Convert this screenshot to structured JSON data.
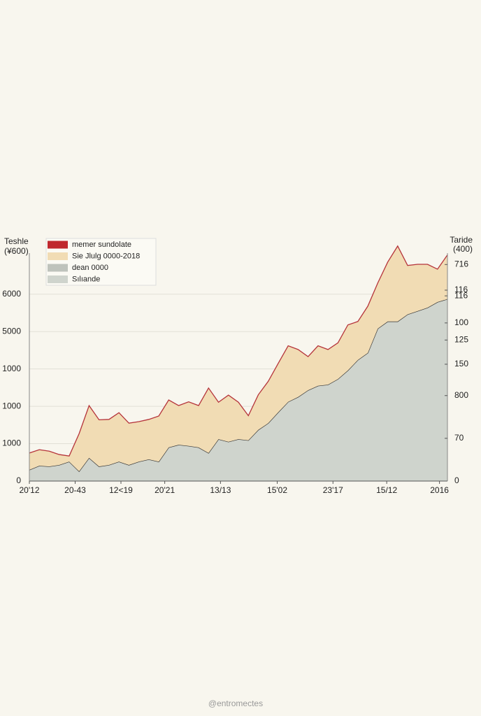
{
  "chart_data": {
    "type": "stacked_area",
    "y_axis_title": "Teshle",
    "y_axis_unit": "(¥600)",
    "y2_axis_title": "Taride",
    "y2_axis_unit": "(400)",
    "watermark": "@entromectes",
    "x": [
      0,
      1,
      2,
      3,
      4,
      5,
      6,
      7,
      8,
      9,
      10,
      11,
      12,
      13,
      14,
      15,
      16,
      17,
      18,
      19,
      20,
      21,
      22,
      23,
      24,
      25,
      26,
      27,
      28,
      29,
      30,
      31,
      32,
      33,
      34,
      35,
      36,
      37,
      38,
      39,
      40,
      41,
      42
    ],
    "xlim": [
      0,
      42
    ],
    "xticks": [
      {
        "value": 0,
        "label": "20'12"
      },
      {
        "value": 4.6,
        "label": "20-43"
      },
      {
        "value": 9.2,
        "label": "12<19"
      },
      {
        "value": 13.6,
        "label": "20'21"
      },
      {
        "value": 19.2,
        "label": "13/13"
      },
      {
        "value": 24.9,
        "label": "15'02"
      },
      {
        "value": 30.5,
        "label": "23'17"
      },
      {
        "value": 35.9,
        "label": "15/12"
      },
      {
        "value": 41.2,
        "label": "2016"
      }
    ],
    "ylim": [
      0,
      6100
    ],
    "yticks": [
      0,
      1000,
      {
        "value": 2000,
        "label": "1000"
      },
      {
        "value": 3000,
        "label": "1000"
      },
      {
        "value": 4000,
        "label": "5000"
      },
      {
        "value": 5000,
        "label": "6000"
      }
    ],
    "y2lim": [
      0,
      800
    ],
    "y2ticks": [
      0,
      {
        "value": 150,
        "label": "70"
      },
      {
        "value": 300,
        "label": "800"
      },
      {
        "value": 410,
        "label": "150"
      },
      {
        "value": 495,
        "label": "125"
      },
      {
        "value": 555,
        "label": "100"
      },
      {
        "value": 650,
        "label": "116"
      },
      {
        "value": 670,
        "label": "116"
      },
      {
        "value": 760,
        "label": "716"
      }
    ],
    "grid": true,
    "legend": "upper left",
    "series": [
      {
        "name": "Sılıande",
        "color": "#cfd4cd",
        "line_name": "dean 0000",
        "line_color": "#bfc3bc",
        "stroke": "#333333",
        "values": [
          300,
          410,
          390,
          430,
          520,
          260,
          620,
          390,
          430,
          520,
          430,
          520,
          580,
          520,
          900,
          970,
          940,
          900,
          750,
          1120,
          1050,
          1120,
          1090,
          1370,
          1550,
          1840,
          2120,
          2250,
          2430,
          2550,
          2580,
          2730,
          2960,
          3240,
          3430,
          4080,
          4270,
          4270,
          4460,
          4550,
          4640,
          4790,
          4870
        ]
      },
      {
        "name": "Sie Jlulg 0000-2018",
        "color": "#f1dcb4",
        "line_name": "memer sundolate",
        "line_color": "#c0282d",
        "stroke": "#b5333a",
        "values": [
          450,
          430,
          410,
          280,
          150,
          1010,
          1400,
          1250,
          1220,
          1310,
          1120,
          1070,
          1070,
          1220,
          1270,
          1050,
          1180,
          1120,
          1740,
          990,
          1250,
          990,
          660,
          940,
          1120,
          1310,
          1500,
          1270,
          900,
          1070,
          940,
          970,
          1220,
          1030,
          1250,
          1220,
          1590,
          2020,
          1310,
          1250,
          1160,
          880,
          1180
        ]
      }
    ]
  }
}
